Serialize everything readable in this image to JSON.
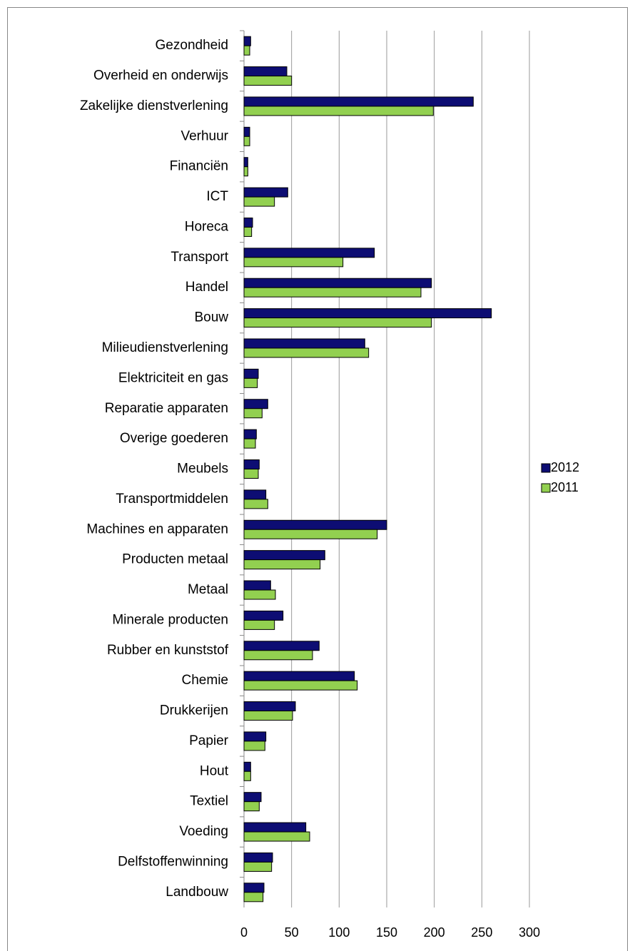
{
  "chart_data": {
    "type": "bar",
    "orientation": "horizontal",
    "categories": [
      "Gezondheid",
      "Overheid en onderwijs",
      "Zakelijke dienstverlening",
      "Verhuur",
      "Financiën",
      "ICT",
      "Horeca",
      "Transport",
      "Handel",
      "Bouw",
      "Milieudienstverlening",
      "Elektriciteit en gas",
      "Reparatie apparaten",
      "Overige goederen",
      "Meubels",
      "Transportmiddelen",
      "Machines en apparaten",
      "Producten metaal",
      "Metaal",
      "Minerale producten",
      "Rubber en kunststof",
      "Chemie",
      "Drukkerijen",
      "Papier",
      "Hout",
      "Textiel",
      "Voeding",
      "Delfstoffenwinning",
      "Landbouw"
    ],
    "series": [
      {
        "name": "2012",
        "color": "#0d0d73",
        "values": [
          7,
          45,
          241,
          6,
          4,
          46,
          9,
          137,
          197,
          260,
          127,
          15,
          25,
          13,
          16,
          23,
          150,
          85,
          28,
          41,
          79,
          116,
          54,
          23,
          7,
          18,
          65,
          30,
          21
        ]
      },
      {
        "name": "2011",
        "color": "#92d050",
        "values": [
          6,
          50,
          199,
          6,
          4,
          32,
          8,
          104,
          186,
          197,
          131,
          14,
          19,
          12,
          15,
          25,
          140,
          80,
          33,
          32,
          72,
          119,
          51,
          22,
          7,
          16,
          69,
          29,
          20
        ]
      }
    ],
    "xlim": [
      0,
      300
    ],
    "xticks": [
      0,
      50,
      100,
      150,
      200,
      250,
      300
    ],
    "grid": true,
    "legend": "right"
  }
}
